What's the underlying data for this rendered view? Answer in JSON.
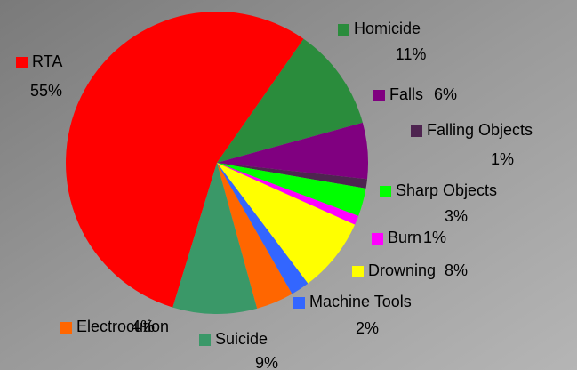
{
  "chart_data": {
    "type": "pie",
    "categories": [
      "RTA",
      "Homicide",
      "Falls",
      "Falling Objects",
      "Sharp Objects",
      "Burn",
      "Drowning",
      "Machine Tools",
      "Electrocution",
      "Suicide"
    ],
    "values": [
      55,
      11,
      6,
      1,
      3,
      1,
      8,
      2,
      4,
      9
    ],
    "value_labels": [
      "55%",
      "11%",
      "6%",
      "1%",
      "3%",
      "1%",
      "8%",
      "2%",
      "4%",
      "9%"
    ],
    "colors": [
      "#ff0000",
      "#2a8c3c",
      "#800080",
      "#4e2450",
      "#00ff00",
      "#ff00ff",
      "#ffff00",
      "#3366ff",
      "#ff6600",
      "#3a9868"
    ]
  }
}
